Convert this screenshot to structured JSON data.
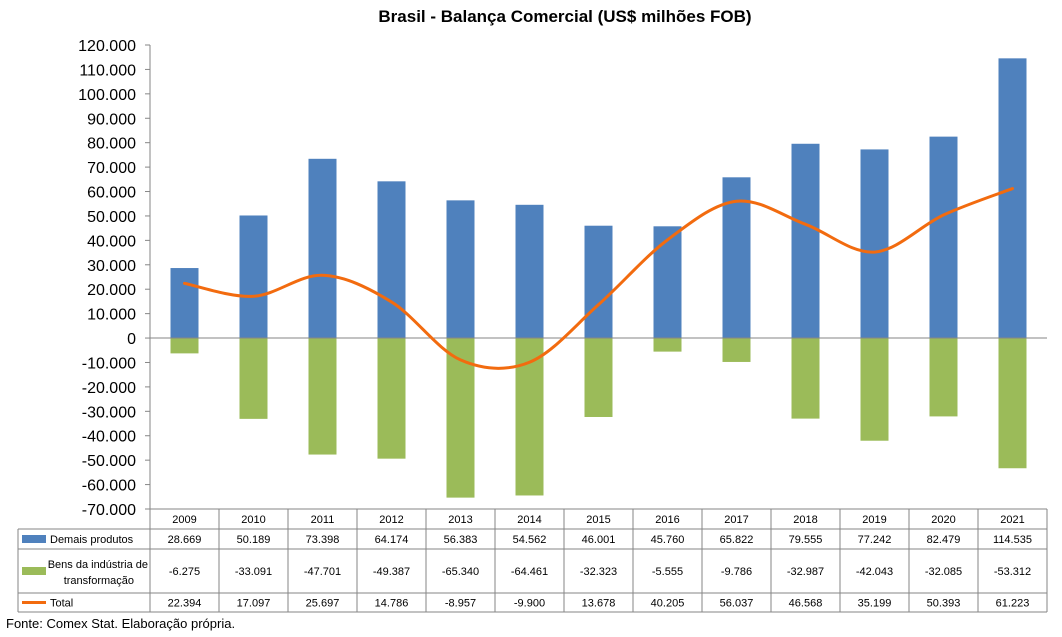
{
  "chart_data": {
    "type": "bar",
    "title": "Brasil - Balança Comercial (US$ milhões FOB)",
    "categories": [
      "2009",
      "2010",
      "2011",
      "2012",
      "2013",
      "2014",
      "2015",
      "2016",
      "2017",
      "2018",
      "2019",
      "2020",
      "2021"
    ],
    "ylim": [
      -70000,
      120000
    ],
    "yticks": [
      {
        "value": 120000,
        "label": "120.000"
      },
      {
        "value": 110000,
        "label": "110.000"
      },
      {
        "value": 100000,
        "label": "100.000"
      },
      {
        "value": 90000,
        "label": "90.000"
      },
      {
        "value": 80000,
        "label": "80.000"
      },
      {
        "value": 70000,
        "label": "70.000"
      },
      {
        "value": 60000,
        "label": "60.000"
      },
      {
        "value": 50000,
        "label": "50.000"
      },
      {
        "value": 40000,
        "label": "40.000"
      },
      {
        "value": 30000,
        "label": "30.000"
      },
      {
        "value": 20000,
        "label": "20.000"
      },
      {
        "value": 10000,
        "label": "10.000"
      },
      {
        "value": 0,
        "label": "0"
      },
      {
        "value": -10000,
        "label": "-10.000"
      },
      {
        "value": -20000,
        "label": "-20.000"
      },
      {
        "value": -30000,
        "label": "-30.000"
      },
      {
        "value": -40000,
        "label": "-40.000"
      },
      {
        "value": -50000,
        "label": "-50.000"
      },
      {
        "value": -60000,
        "label": "-60.000"
      },
      {
        "value": -70000,
        "label": "-70.000"
      }
    ],
    "grid": false,
    "legend": "data-table",
    "series": [
      {
        "name": "Demais produtos",
        "kind": "bar",
        "color": "#4f81bd",
        "values": [
          28669,
          50189,
          73398,
          64174,
          56383,
          54562,
          46001,
          45760,
          65822,
          79555,
          77242,
          82479,
          114535
        ],
        "labels": [
          "28.669",
          "50.189",
          "73.398",
          "64.174",
          "56.383",
          "54.562",
          "46.001",
          "45.760",
          "65.822",
          "79.555",
          "77.242",
          "82.479",
          "114.535"
        ]
      },
      {
        "name": "Bens da indústria de transformação",
        "name_lines": [
          "Bens da indústria de",
          "transformação"
        ],
        "kind": "bar",
        "color": "#9bbb59",
        "values": [
          -6275,
          -33091,
          -47701,
          -49387,
          -65340,
          -64461,
          -32323,
          -5555,
          -9786,
          -32987,
          -42043,
          -32085,
          -53312
        ],
        "labels": [
          "-6.275",
          "-33.091",
          "-47.701",
          "-49.387",
          "-65.340",
          "-64.461",
          "-32.323",
          "-5.555",
          "-9.786",
          "-32.987",
          "-42.043",
          "-32.085",
          "-53.312"
        ]
      },
      {
        "name": "Total",
        "kind": "line",
        "color": "#f26b0f",
        "values": [
          22394,
          17097,
          25697,
          14786,
          -8957,
          -9900,
          13678,
          40205,
          56037,
          46568,
          35199,
          50393,
          61223
        ],
        "labels": [
          "22.394",
          "17.097",
          "25.697",
          "14.786",
          "-8.957",
          "-9.900",
          "13.678",
          "40.205",
          "56.037",
          "46.568",
          "35.199",
          "50.393",
          "61.223"
        ]
      }
    ]
  },
  "footer": {
    "source": "Fonte: Comex Stat. Elaboração própria."
  }
}
